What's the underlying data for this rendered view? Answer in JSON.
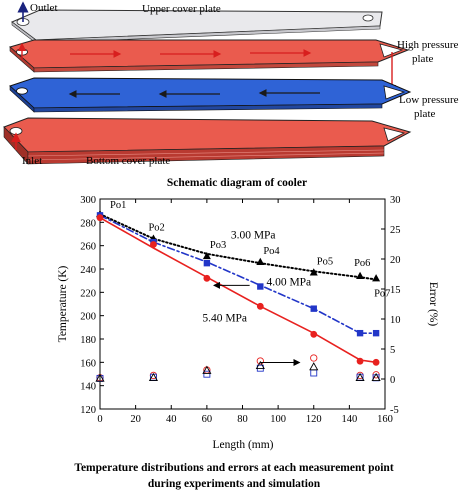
{
  "schematic": {
    "labels": {
      "outlet": "Outlet",
      "upper": "Upper cover plate",
      "high1": "High pressure",
      "high2": "plate",
      "low1": "Low pressure",
      "low2": "plate",
      "inlet": "Inlet",
      "bottom": "Bottom cover plate"
    },
    "caption": "Schematic diagram of cooler",
    "colors": {
      "upper": "#f2f2f2",
      "high": "#ea5b4e",
      "low": "#2f63d6",
      "bottom": "#ea5b4e",
      "arrow_red": "#d81e1e",
      "arrow_dark": "#1a1a1a"
    }
  },
  "chart_data": {
    "type": "line",
    "xlabel": "Length (mm)",
    "ylabel": "Temperature (K)",
    "y2label": "Error (%)",
    "xlim": [
      0,
      160
    ],
    "ylim": [
      120,
      300
    ],
    "y2lim": [
      -5,
      30
    ],
    "xticks": [
      "0",
      "20",
      "40",
      "60",
      "80",
      "100",
      "120",
      "140",
      "160"
    ],
    "yticks": [
      "120",
      "140",
      "160",
      "180",
      "200",
      "220",
      "240",
      "260",
      "280",
      "300"
    ],
    "y2ticks": [
      "-5",
      "0",
      "5",
      "10",
      "15",
      "20",
      "25",
      "30"
    ],
    "grid": false,
    "points": [
      {
        "name": "Po1",
        "x": 0
      },
      {
        "name": "Po2",
        "x": 30
      },
      {
        "name": "Po3",
        "x": 60
      },
      {
        "name": "Po4",
        "x": 90
      },
      {
        "name": "Po5",
        "x": 120
      },
      {
        "name": "Po6",
        "x": 146
      },
      {
        "name": "Po7",
        "x": 155
      }
    ],
    "series": [
      {
        "name": "3.00 MPa",
        "color": "#000000",
        "line": "dotted",
        "marker": "triangle",
        "x": [
          0,
          30,
          60,
          90,
          120,
          146,
          155
        ],
        "y": [
          287,
          266,
          251,
          246,
          237,
          234,
          232
        ],
        "sim_x": [
          0,
          30,
          60,
          90,
          120,
          146,
          155
        ],
        "sim_y": [
          287,
          266,
          253,
          245,
          238,
          233,
          231
        ]
      },
      {
        "name": "4.00 MPa",
        "color": "#2236c8",
        "line": "dash-dot",
        "marker": "square",
        "x": [
          0,
          30,
          60,
          90,
          120,
          146,
          155
        ],
        "y": [
          286,
          263,
          245,
          225,
          206,
          185,
          185
        ],
        "sim_x": [
          0,
          30,
          60,
          90,
          120,
          146,
          155
        ],
        "sim_y": [
          286,
          263,
          246,
          226,
          206,
          185,
          185
        ]
      },
      {
        "name": "5.40 MPa",
        "color": "#e8211f",
        "line": "solid",
        "marker": "circle",
        "x": [
          0,
          30,
          60,
          90,
          120,
          146,
          155
        ],
        "y": [
          284,
          261,
          232,
          208,
          184,
          161,
          160
        ],
        "sim_x": [
          0,
          30,
          60,
          90,
          120,
          146,
          155
        ],
        "sim_y": [
          284,
          258,
          233,
          208,
          185,
          162,
          160
        ]
      }
    ],
    "errors": [
      {
        "series": "5.40 MPa",
        "marker": "open-circle",
        "color": "#e8211f",
        "x": [
          0,
          30,
          60,
          90,
          120,
          146,
          155
        ],
        "y": [
          0.2,
          0.6,
          1.5,
          3.0,
          3.5,
          0.6,
          0.7
        ]
      },
      {
        "series": "4.00 MPa",
        "marker": "open-square",
        "color": "#2236c8",
        "x": [
          0,
          30,
          60,
          90,
          120,
          146,
          155
        ],
        "y": [
          0.1,
          0.3,
          0.8,
          1.8,
          1.0,
          0.3,
          0.2
        ]
      },
      {
        "series": "3.00 MPa",
        "marker": "open-triangle",
        "color": "#000000",
        "x": [
          0,
          30,
          60,
          90,
          120,
          146,
          155
        ],
        "y": [
          0.1,
          0.2,
          1.4,
          2.2,
          2.0,
          0.2,
          0.2
        ]
      }
    ],
    "annotations": [
      {
        "text": "3.00 MPa",
        "x": 86,
        "y": 266
      },
      {
        "text": "4.00 MPa",
        "x": 106,
        "y": 226
      },
      {
        "text": "5.40 MPa",
        "x": 70,
        "y": 195
      }
    ],
    "arrows": [
      {
        "direction": "left",
        "from_x": 84,
        "to_x": 64,
        "y": 226
      },
      {
        "direction": "right",
        "from_x": 90,
        "to_x": 112,
        "y": 155
      }
    ],
    "caption_line1": "Temperature distributions and errors at each measurement point",
    "caption_line2": "during experiments and simulation"
  }
}
